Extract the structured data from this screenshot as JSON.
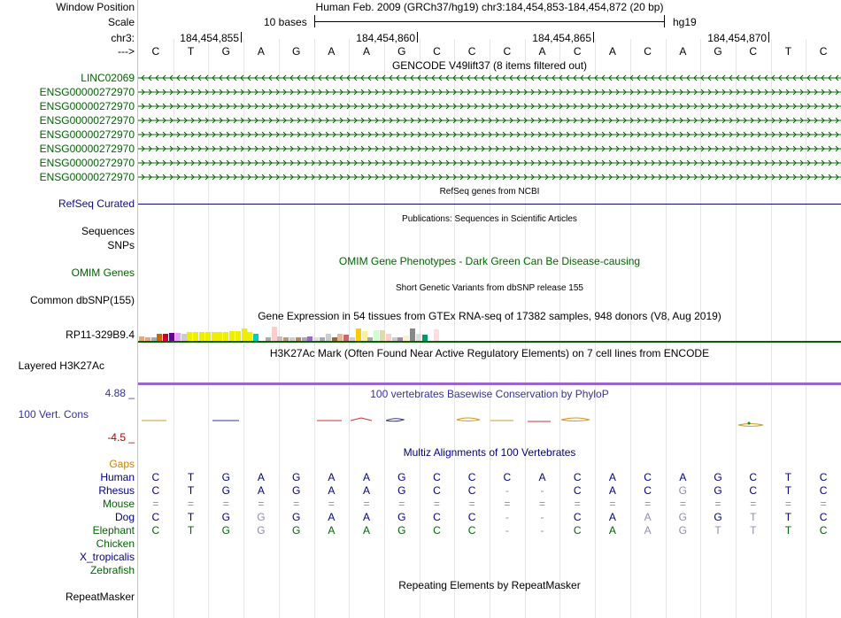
{
  "header": {
    "window_position_label": "Window Position",
    "window_position_text": "Human Feb. 2009 (GRCh37/hg19)   chr3:184,454,853-184,454,872 (20 bp)",
    "scale_label": "Scale",
    "scale_text": "10 bases",
    "scale_assembly": "hg19",
    "chr_label": "chr3:",
    "coords": [
      "184,454,855",
      "184,454,860",
      "184,454,865",
      "184,454,870"
    ],
    "strand_label": "--->",
    "bases": [
      "C",
      "T",
      "G",
      "A",
      "G",
      "A",
      "A",
      "G",
      "C",
      "C",
      "C",
      "A",
      "C",
      "A",
      "C",
      "A",
      "G",
      "C",
      "T",
      "C"
    ]
  },
  "gencode": {
    "title": "GENCODE V49lift37 (8 items filtered out)",
    "rows": [
      "LINC02069",
      "ENSG00000272970",
      "ENSG00000272970",
      "ENSG00000272970",
      "ENSG00000272970",
      "ENSG00000272970",
      "ENSG00000272970",
      "ENSG00000272970"
    ]
  },
  "refseq": {
    "title": "RefSeq genes from NCBI",
    "label": "RefSeq Curated"
  },
  "publications": {
    "title": "Publications: Sequences in Scientific Articles",
    "label": "Sequences"
  },
  "snps": {
    "label": "SNPs"
  },
  "omim": {
    "title": "OMIM Gene Phenotypes - Dark Green Can Be Disease-causing",
    "label": "OMIM Genes"
  },
  "dbsnp": {
    "title": "Short Genetic Variants from dbSNP release 155",
    "label": "Common dbSNP(155)"
  },
  "gtex": {
    "title": "Gene Expression in 54 tissues from GTEx RNA-seq of 17382 samples, 948 donors (V8, Aug 2019)",
    "label": "RP11-329B9.4",
    "bars": [
      {
        "c": "#e8a87c",
        "h": 0.35
      },
      {
        "c": "#f3a37b",
        "h": 0.25
      },
      {
        "c": "#aaaaaa",
        "h": 0.25
      },
      {
        "c": "#cc6600",
        "h": 0.6
      },
      {
        "c": "#cc0033",
        "h": 0.6
      },
      {
        "c": "#660099",
        "h": 0.65
      },
      {
        "c": "#e6a3ff",
        "h": 0.65
      },
      {
        "c": "#cccccc",
        "h": 0.6
      },
      {
        "c": "#eeee00",
        "h": 0.7
      },
      {
        "c": "#eeee00",
        "h": 0.7
      },
      {
        "c": "#eeee00",
        "h": 0.7
      },
      {
        "c": "#eeee00",
        "h": 0.7
      },
      {
        "c": "#eeee00",
        "h": 0.7
      },
      {
        "c": "#eeee00",
        "h": 0.7
      },
      {
        "c": "#eeee00",
        "h": 0.7
      },
      {
        "c": "#eeee00",
        "h": 0.75
      },
      {
        "c": "#eeee00",
        "h": 0.8
      },
      {
        "c": "#eeee00",
        "h": 1.0
      },
      {
        "c": "#eeee00",
        "h": 0.7
      },
      {
        "c": "#00cccc",
        "h": 0.55
      },
      {
        "c": "#ffffff",
        "h": 0.0
      },
      {
        "c": "#aaaaaa",
        "h": 0.25
      },
      {
        "c": "#ffcccc",
        "h": 1.15
      },
      {
        "c": "#ccbbbb",
        "h": 0.35
      },
      {
        "c": "#bb9977",
        "h": 0.3
      },
      {
        "c": "#cccccc",
        "h": 0.25
      },
      {
        "c": "#bb8866",
        "h": 0.25
      },
      {
        "c": "#aaaaaa",
        "h": 0.25
      },
      {
        "c": "#9966cc",
        "h": 0.35
      },
      {
        "c": "#dddddd",
        "h": 0.25
      },
      {
        "c": "#aaaaaa",
        "h": 0.3
      },
      {
        "c": "#cccccc",
        "h": 0.55
      },
      {
        "c": "#996633",
        "h": 0.3
      },
      {
        "c": "#ddbb99",
        "h": 0.55
      },
      {
        "c": "#cc6666",
        "h": 0.5
      },
      {
        "c": "#cccccc",
        "h": 0.3
      },
      {
        "c": "#ffcc00",
        "h": 1.0
      },
      {
        "c": "#ffee99",
        "h": 0.75
      },
      {
        "c": "#aaaaaa",
        "h": 0.25
      },
      {
        "c": "#ccffcc",
        "h": 0.85
      },
      {
        "c": "#ddddaa",
        "h": 0.85
      },
      {
        "c": "#ffcccc",
        "h": 0.55
      },
      {
        "c": "#cccccc",
        "h": 0.25
      },
      {
        "c": "#aa88aa",
        "h": 0.3
      },
      {
        "c": "#ffeecc",
        "h": 0.4
      },
      {
        "c": "#888888",
        "h": 1.0
      },
      {
        "c": "#dddddd",
        "h": 0.6
      },
      {
        "c": "#009966",
        "h": 0.5
      },
      {
        "c": "#ffffff",
        "h": 0.0
      },
      {
        "c": "#ffdddd",
        "h": 0.9
      },
      {
        "c": "#ffffff",
        "h": 0.0
      },
      {
        "c": "#ffffff",
        "h": 0.0
      },
      {
        "c": "#ffffff",
        "h": 0.0
      },
      {
        "c": "#ffffff",
        "h": 0.0
      }
    ]
  },
  "h3k27ac": {
    "title": "H3K27Ac Mark (Often Found Near Active Regulatory Elements) on 7 cell lines from ENCODE",
    "label": "Layered H3K27Ac"
  },
  "conservation": {
    "title": "100 vertebrates Basewise Conservation by PhyloP",
    "label": "100 Vert. Cons",
    "ymax": "4.88 _",
    "ymin": "-4.5 _"
  },
  "multiz": {
    "title": "Multiz Alignments of 100 Vertebrates",
    "gaps_label": "Gaps",
    "species": [
      {
        "name": "Human",
        "color": "#000080",
        "seq": [
          "C",
          "T",
          "G",
          "A",
          "G",
          "A",
          "A",
          "G",
          "C",
          "C",
          "C",
          "A",
          "C",
          "A",
          "C",
          "A",
          "G",
          "C",
          "T",
          "C"
        ]
      },
      {
        "name": "Rhesus",
        "color": "#000080",
        "seq": [
          "C",
          "T",
          "G",
          "A",
          "G",
          "A",
          "A",
          "G",
          "C",
          "C",
          "-",
          "-",
          "C",
          "A",
          "C",
          "G",
          "G",
          "C",
          "T",
          "C"
        ]
      },
      {
        "name": "Mouse",
        "color": "#006400",
        "seq": [
          "=",
          "=",
          "=",
          "=",
          "=",
          "=",
          "=",
          "=",
          "=",
          "=",
          "=",
          "=",
          "=",
          "=",
          "=",
          "=",
          "=",
          "=",
          "=",
          "="
        ]
      },
      {
        "name": "Dog",
        "color": "#000080",
        "seq": [
          "C",
          "T",
          "G",
          "G",
          "G",
          "A",
          "A",
          "G",
          "C",
          "C",
          "-",
          "-",
          "C",
          "A",
          "A",
          "G",
          "G",
          "T",
          "T",
          "C"
        ]
      },
      {
        "name": "Elephant",
        "color": "#006400",
        "seq": [
          "C",
          "T",
          "G",
          "G",
          "G",
          "A",
          "A",
          "G",
          "C",
          "C",
          "-",
          "-",
          "C",
          "A",
          "A",
          "G",
          "T",
          "T",
          "T",
          "C"
        ]
      },
      {
        "name": "Chicken",
        "color": "#006400",
        "seq": []
      },
      {
        "name": "X_tropicalis",
        "color": "#000080",
        "seq": []
      },
      {
        "name": "Zebrafish",
        "color": "#006400",
        "seq": []
      }
    ]
  },
  "repeatmasker": {
    "title": "Repeating Elements by RepeatMasker",
    "label": "RepeatMasker"
  },
  "colors": {
    "gencode": "#006400",
    "refseq": "#0c0c78",
    "conservation": "#333399",
    "h3k27ac_line": "#9966cc",
    "gaps": "#d08000"
  }
}
